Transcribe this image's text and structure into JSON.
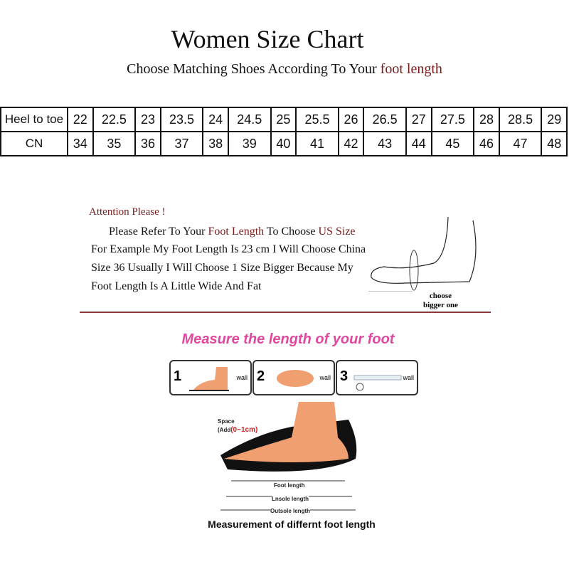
{
  "title": "Women Size Chart",
  "subtitle": {
    "prefix": "Choose Matching Shoes According To Your ",
    "highlight": "foot length"
  },
  "table": {
    "row1_label": "Heel to toe",
    "row2_label": "CN",
    "heel_to_toe": [
      "22",
      "22.5",
      "23",
      "23.5",
      "24",
      "24.5",
      "25",
      "25.5",
      "26",
      "26.5",
      "27",
      "27.5",
      "28",
      "28.5",
      "29"
    ],
    "cn": [
      "34",
      "35",
      "36",
      "37",
      "38",
      "39",
      "40",
      "41",
      "42",
      "43",
      "44",
      "45",
      "46",
      "47",
      "48"
    ]
  },
  "attention": {
    "heading": "Attention Please !",
    "l1a": "Please Refer To Your ",
    "l1b": "Foot Length",
    "l1c": " To Choose ",
    "l1d": "US Size",
    ".": ".",
    "l2": "For Example My Foot Length Is 23 cm I Will Choose China",
    "l3": "Size  36 Usually I Will Choose 1 Size Bigger Because My",
    "l4": "Foot Length Is A Little Wide And Fat",
    "foot_note1": "choose",
    "foot_note2": "bigger one"
  },
  "measure": {
    "title": "Measure the length of your foot",
    "steps": [
      "1",
      "2",
      "3"
    ],
    "wall": "wall",
    "space": "Space",
    "add_prefix": "(Add",
    "add_range": "(0~1cm)",
    "foot_length": "Foot length",
    "insole_length": "Lnsole length",
    "outsole_length": "Outsole length",
    "caption": "Measurement of differnt foot length"
  },
  "colors": {
    "accent": "#7a1a1a",
    "pink": "#e0479e",
    "foot": "#f0a070"
  }
}
